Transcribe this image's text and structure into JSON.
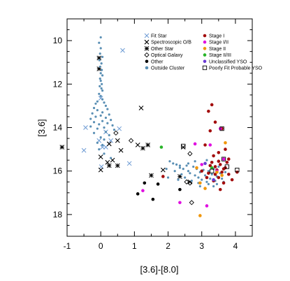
{
  "chart_data": {
    "type": "scatter",
    "xlabel": "[3.6]-[8.0]",
    "ylabel": "[3.6]",
    "xlim": [
      -1,
      4.5
    ],
    "ylim": [
      19.0,
      9.0
    ],
    "y_inverted": true,
    "xticks": [
      -1,
      0,
      1,
      2,
      3,
      4
    ],
    "yticks": [
      10,
      12,
      14,
      16,
      18
    ],
    "legend_position": "top-right",
    "series": [
      {
        "name": "Fit Star",
        "marker": "x",
        "color": "#6c9ad4",
        "points": [
          [
            0.65,
            10.45
          ],
          [
            0.0,
            12.65
          ],
          [
            -0.45,
            14.0
          ],
          [
            -0.5,
            15.05
          ],
          [
            0.05,
            14.9
          ],
          [
            0.3,
            14.6
          ],
          [
            0.15,
            14.9
          ],
          [
            0.85,
            15.65
          ],
          [
            0.02,
            15.8
          ],
          [
            0.15,
            14.2
          ],
          [
            0.55,
            14.05
          ],
          [
            -0.05,
            14.6
          ]
        ]
      },
      {
        "name": "Spectroscopic O/B",
        "marker": "cross",
        "color": "#000000",
        "points": [
          [
            1.2,
            13.1
          ],
          [
            0.0,
            15.35
          ],
          [
            0.0,
            15.95
          ],
          [
            0.35,
            15.5
          ],
          [
            0.5,
            14.6
          ],
          [
            0.6,
            15.05
          ],
          [
            0.2,
            15.6
          ],
          [
            0.25,
            14.75
          ],
          [
            1.1,
            14.8
          ],
          [
            1.85,
            15.95
          ],
          [
            2.45,
            14.9
          ],
          [
            2.65,
            16.5
          ]
        ]
      },
      {
        "name": "Other Star",
        "marker": "asterisk",
        "color": "#000000",
        "points": [
          [
            -0.05,
            10.8
          ],
          [
            -0.05,
            11.3
          ],
          [
            -1.15,
            14.9
          ],
          [
            0.5,
            15.75
          ],
          [
            0.25,
            15.75
          ],
          [
            1.4,
            14.8
          ],
          [
            1.25,
            14.95
          ],
          [
            1.5,
            16.2
          ],
          [
            2.35,
            16.25
          ]
        ]
      },
      {
        "name": "Optical Galaxy",
        "marker": "diamond",
        "color": "#000000",
        "points": [
          [
            0.45,
            14.25
          ],
          [
            0.9,
            14.6
          ],
          [
            2.55,
            16.5
          ],
          [
            2.65,
            15.2
          ],
          [
            2.65,
            16.55
          ],
          [
            2.7,
            17.45
          ]
        ]
      },
      {
        "name": "Other",
        "marker": "dot",
        "color": "#000000",
        "points": [
          [
            1.1,
            17.05
          ],
          [
            1.3,
            16.55
          ],
          [
            1.55,
            17.3
          ],
          [
            1.7,
            16.6
          ],
          [
            2.35,
            16.85
          ]
        ]
      },
      {
        "name": "Outside Cluster",
        "marker": "dot",
        "color": "#5a8fb4",
        "points": [
          [
            0.0,
            9.85
          ],
          [
            -0.05,
            10.1
          ],
          [
            0.0,
            10.35
          ],
          [
            -0.02,
            10.6
          ],
          [
            0.05,
            10.75
          ],
          [
            -0.04,
            10.9
          ],
          [
            0.02,
            11.05
          ],
          [
            -0.02,
            11.2
          ],
          [
            0.03,
            11.35
          ],
          [
            0.0,
            11.5
          ],
          [
            0.05,
            11.6
          ],
          [
            -0.02,
            11.75
          ],
          [
            0.0,
            11.85
          ],
          [
            0.03,
            12.0
          ],
          [
            -0.03,
            12.1
          ],
          [
            0.02,
            12.2
          ],
          [
            0.05,
            12.3
          ],
          [
            -0.05,
            12.45
          ],
          [
            0.0,
            12.55
          ],
          [
            0.05,
            12.7
          ],
          [
            -0.1,
            12.8
          ],
          [
            0.1,
            12.85
          ],
          [
            -0.15,
            12.9
          ],
          [
            0.15,
            13.0
          ],
          [
            -0.2,
            13.1
          ],
          [
            0.2,
            13.15
          ],
          [
            -0.1,
            13.2
          ],
          [
            0.05,
            13.3
          ],
          [
            -0.25,
            13.35
          ],
          [
            0.25,
            13.4
          ],
          [
            0.0,
            13.45
          ],
          [
            -0.15,
            13.5
          ],
          [
            0.15,
            13.55
          ],
          [
            -0.3,
            13.6
          ],
          [
            0.3,
            13.65
          ],
          [
            0.05,
            13.7
          ],
          [
            -0.2,
            13.75
          ],
          [
            0.2,
            13.8
          ],
          [
            -0.05,
            13.85
          ],
          [
            0.35,
            13.9
          ],
          [
            -0.3,
            13.95
          ],
          [
            0.1,
            14.0
          ],
          [
            -0.1,
            14.05
          ],
          [
            0.4,
            14.1
          ],
          [
            0.15,
            14.2
          ],
          [
            -0.2,
            14.25
          ],
          [
            0.25,
            14.35
          ],
          [
            0.0,
            14.45
          ],
          [
            0.1,
            14.55
          ],
          [
            -0.1,
            14.7
          ],
          [
            0.05,
            14.8
          ],
          [
            -0.05,
            15.0
          ],
          [
            0.1,
            15.2
          ],
          [
            0.3,
            15.4
          ],
          [
            2.05,
            15.55
          ],
          [
            2.15,
            15.65
          ],
          [
            2.25,
            15.7
          ],
          [
            2.35,
            15.85
          ],
          [
            2.45,
            15.9
          ],
          [
            2.55,
            15.75
          ],
          [
            2.6,
            16.0
          ],
          [
            2.65,
            16.1
          ],
          [
            2.75,
            15.8
          ],
          [
            2.8,
            16.2
          ],
          [
            2.85,
            15.9
          ],
          [
            2.9,
            16.3
          ],
          [
            2.95,
            16.05
          ],
          [
            3.0,
            16.4
          ],
          [
            3.05,
            15.95
          ],
          [
            3.1,
            16.2
          ],
          [
            3.15,
            16.5
          ],
          [
            3.2,
            16.0
          ],
          [
            3.25,
            16.35
          ],
          [
            3.3,
            16.15
          ],
          [
            3.35,
            15.9
          ],
          [
            3.4,
            16.45
          ],
          [
            3.45,
            16.25
          ],
          [
            3.5,
            15.8
          ],
          [
            3.55,
            16.1
          ],
          [
            3.6,
            16.35
          ],
          [
            2.2,
            16.0
          ],
          [
            2.4,
            16.15
          ],
          [
            2.5,
            16.3
          ],
          [
            2.7,
            16.45
          ],
          [
            2.9,
            16.55
          ],
          [
            3.0,
            15.7
          ],
          [
            3.2,
            16.6
          ],
          [
            2.35,
            15.75
          ],
          [
            2.6,
            15.65
          ],
          [
            2.95,
            16.7
          ],
          [
            3.15,
            15.5
          ],
          [
            3.45,
            16.6
          ],
          [
            3.7,
            16.05
          ],
          [
            2.0,
            16.3
          ],
          [
            2.3,
            16.4
          ],
          [
            2.8,
            15.55
          ],
          [
            3.35,
            16.7
          ],
          [
            1.95,
            15.9
          ],
          [
            3.65,
            16.5
          ]
        ]
      },
      {
        "name": "Stage I",
        "marker": "dot",
        "color": "#a30d0d",
        "points": [
          [
            3.3,
            12.95
          ],
          [
            3.2,
            13.25
          ],
          [
            3.4,
            13.75
          ],
          [
            3.25,
            14.15
          ],
          [
            3.6,
            14.05
          ],
          [
            3.1,
            14.8
          ],
          [
            3.7,
            15.0
          ],
          [
            3.5,
            15.15
          ],
          [
            3.35,
            15.3
          ],
          [
            3.8,
            15.45
          ],
          [
            3.3,
            15.6
          ],
          [
            3.55,
            15.7
          ],
          [
            3.4,
            15.8
          ],
          [
            3.7,
            15.85
          ],
          [
            3.45,
            15.95
          ],
          [
            3.6,
            16.05
          ],
          [
            3.2,
            16.1
          ],
          [
            3.8,
            16.15
          ],
          [
            3.5,
            16.3
          ],
          [
            3.35,
            16.45
          ],
          [
            4.05,
            16.05
          ],
          [
            3.65,
            16.55
          ],
          [
            3.75,
            15.6
          ],
          [
            3.25,
            15.75
          ],
          [
            3.5,
            15.55
          ],
          [
            3.0,
            16.0
          ],
          [
            3.15,
            16.3
          ],
          [
            3.9,
            16.4
          ],
          [
            1.85,
            16.25
          ],
          [
            3.4,
            16.15
          ],
          [
            3.55,
            16.85
          ],
          [
            3.65,
            15.9
          ]
        ]
      },
      {
        "name": "Stage I/II",
        "marker": "dot",
        "color": "#e010e0",
        "points": [
          [
            3.55,
            14.05
          ],
          [
            3.25,
            14.8
          ],
          [
            2.8,
            14.75
          ],
          [
            3.0,
            15.7
          ],
          [
            3.45,
            16.0
          ],
          [
            1.25,
            16.9
          ],
          [
            2.35,
            17.45
          ],
          [
            3.15,
            17.6
          ],
          [
            3.65,
            15.45
          ]
        ]
      },
      {
        "name": "Stage II",
        "marker": "dot",
        "color": "#f0960a",
        "points": [
          [
            3.7,
            14.7
          ],
          [
            3.45,
            16.05
          ],
          [
            2.85,
            15.85
          ],
          [
            2.95,
            16.55
          ],
          [
            2.95,
            18.05
          ],
          [
            3.6,
            16.2
          ],
          [
            3.1,
            16.8
          ]
        ]
      },
      {
        "name": "Stage II/III",
        "marker": "dot",
        "color": "#28b428",
        "points": [
          [
            1.8,
            14.9
          ],
          [
            3.3,
            15.85
          ]
        ]
      },
      {
        "name": "Unclassified YSO",
        "marker": "dot",
        "color": "#6a3ad4",
        "points": [
          [
            3.1,
            15.65
          ],
          [
            3.35,
            16.4
          ]
        ]
      },
      {
        "name": "Poorly Fit Probable YSO",
        "marker": "square",
        "color": "#000000",
        "points": [
          [
            2.45,
            14.85
          ],
          [
            3.6,
            14.05
          ],
          [
            3.65,
            15.45
          ],
          [
            3.75,
            15.8
          ],
          [
            4.05,
            15.95
          ],
          [
            3.3,
            16.0
          ]
        ]
      }
    ]
  }
}
